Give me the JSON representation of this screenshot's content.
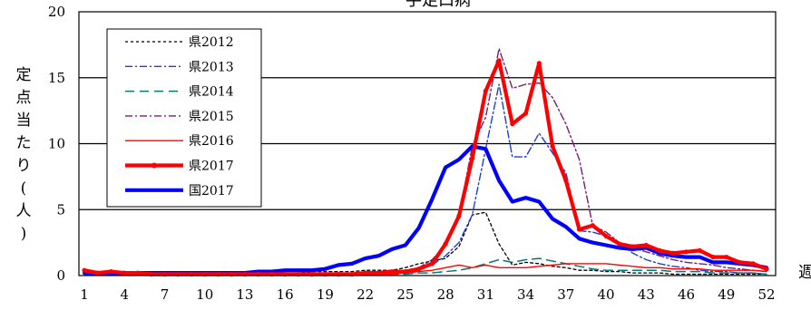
{
  "chart_data": {
    "type": "line",
    "title": "手足口病",
    "ylabel": "定点当たり(人)",
    "xlabel": "週",
    "ylim": [
      0,
      20
    ],
    "yticks": [
      0,
      5,
      10,
      15,
      20
    ],
    "xticks": [
      1,
      4,
      7,
      10,
      13,
      16,
      19,
      22,
      25,
      28,
      31,
      34,
      37,
      40,
      43,
      46,
      49,
      52
    ],
    "legend_position": "top-left",
    "grid": "horizontal",
    "x": [
      1,
      2,
      3,
      4,
      5,
      6,
      7,
      8,
      9,
      10,
      11,
      12,
      13,
      14,
      15,
      16,
      17,
      18,
      19,
      20,
      21,
      22,
      23,
      24,
      25,
      26,
      27,
      28,
      29,
      30,
      31,
      32,
      33,
      34,
      35,
      36,
      37,
      38,
      39,
      40,
      41,
      42,
      43,
      44,
      45,
      46,
      47,
      48,
      49,
      50,
      51,
      52
    ],
    "series": [
      {
        "name": "県2012",
        "color": "#000000",
        "style": "dotted",
        "values": [
          0.1,
          0.1,
          0.1,
          0.1,
          0.1,
          0.1,
          0.1,
          0.1,
          0.1,
          0.1,
          0.1,
          0.1,
          0.1,
          0.1,
          0.1,
          0.2,
          0.2,
          0.3,
          0.3,
          0.3,
          0.3,
          0.4,
          0.4,
          0.4,
          0.6,
          0.9,
          1.1,
          1.3,
          2.2,
          4.6,
          4.8,
          2.4,
          0.8,
          1.0,
          0.9,
          0.7,
          0.6,
          0.4,
          0.4,
          0.3,
          0.3,
          0.2,
          0.2,
          0.2,
          0.1,
          0.1,
          0.1,
          0.1,
          0.1,
          0.1,
          0.1,
          0.1
        ]
      },
      {
        "name": "県2013",
        "color": "#1f3fcc",
        "style": "dashdot",
        "values": [
          0.1,
          0.1,
          0.1,
          0.1,
          0.1,
          0.1,
          0.1,
          0.1,
          0.1,
          0.1,
          0.1,
          0.1,
          0.1,
          0.1,
          0.1,
          0.1,
          0.1,
          0.1,
          0.1,
          0.1,
          0.1,
          0.1,
          0.2,
          0.2,
          0.3,
          0.5,
          0.8,
          1.5,
          2.5,
          4.6,
          9.6,
          14.5,
          9.0,
          9.0,
          10.8,
          9.3,
          7.8,
          3.4,
          3.3,
          3.0,
          2.5,
          1.7,
          1.2,
          0.9,
          0.7,
          0.6,
          0.4,
          0.3,
          0.3,
          0.2,
          0.2,
          0.1
        ]
      },
      {
        "name": "県2014",
        "color": "#007a7a",
        "style": "dashed",
        "values": [
          0.1,
          0.1,
          0.1,
          0.1,
          0.1,
          0.1,
          0.1,
          0.1,
          0.1,
          0.1,
          0.1,
          0.1,
          0.1,
          0.1,
          0.1,
          0.1,
          0.1,
          0.1,
          0.1,
          0.1,
          0.1,
          0.1,
          0.1,
          0.1,
          0.1,
          0.2,
          0.2,
          0.3,
          0.4,
          0.6,
          0.9,
          1.2,
          1.0,
          1.2,
          1.3,
          1.1,
          0.9,
          0.7,
          0.5,
          0.4,
          0.4,
          0.4,
          0.4,
          0.4,
          0.3,
          0.3,
          0.3,
          0.2,
          0.2,
          0.2,
          0.2,
          0.1
        ]
      },
      {
        "name": "県2015",
        "color": "#7a1a7a",
        "style": "dashdot",
        "values": [
          0.1,
          0.1,
          0.1,
          0.1,
          0.1,
          0.1,
          0.1,
          0.1,
          0.1,
          0.1,
          0.1,
          0.1,
          0.1,
          0.1,
          0.1,
          0.1,
          0.1,
          0.1,
          0.1,
          0.1,
          0.1,
          0.1,
          0.1,
          0.2,
          0.3,
          0.6,
          1.2,
          2.3,
          4.5,
          9.8,
          12.0,
          17.2,
          14.2,
          14.5,
          14.6,
          13.5,
          11.5,
          8.8,
          3.8,
          3.3,
          2.5,
          2.1,
          1.8,
          1.5,
          1.2,
          1.0,
          0.9,
          0.8,
          0.6,
          0.5,
          0.4,
          0.3
        ]
      },
      {
        "name": "県2016",
        "color": "#ff0000",
        "style": "solid-thin",
        "values": [
          0.1,
          0.1,
          0.1,
          0.1,
          0.1,
          0.1,
          0.1,
          0.1,
          0.1,
          0.1,
          0.1,
          0.1,
          0.1,
          0.1,
          0.1,
          0.1,
          0.1,
          0.1,
          0.1,
          0.1,
          0.1,
          0.1,
          0.1,
          0.1,
          0.2,
          0.3,
          0.4,
          0.6,
          0.8,
          0.6,
          0.8,
          0.6,
          0.6,
          0.6,
          0.7,
          0.8,
          0.9,
          0.9,
          0.9,
          0.9,
          0.8,
          0.7,
          0.6,
          0.6,
          0.5,
          0.5,
          0.5,
          0.4,
          0.4,
          0.4,
          0.4,
          0.3
        ]
      },
      {
        "name": "県2017",
        "color": "#ff0000",
        "style": "solid-thick-markers",
        "values": [
          0.4,
          0.2,
          0.3,
          0.2,
          0.2,
          0.1,
          0.1,
          0.1,
          0.1,
          0.1,
          0.1,
          0.1,
          0.1,
          0.1,
          0.1,
          0.1,
          0.1,
          0.1,
          0.1,
          0.1,
          0.1,
          0.2,
          0.2,
          0.3,
          0.3,
          0.5,
          0.9,
          2.4,
          4.5,
          8.9,
          14.0,
          16.3,
          11.5,
          12.3,
          16.1,
          9.8,
          7.2,
          3.5,
          3.8,
          3.0,
          2.4,
          2.2,
          2.3,
          1.9,
          1.7,
          1.8,
          1.9,
          1.4,
          1.4,
          1.0,
          0.9,
          0.5
        ]
      },
      {
        "name": "国2017",
        "color": "#0000ff",
        "style": "solid-thick",
        "values": [
          0.2,
          0.2,
          0.2,
          0.2,
          0.2,
          0.2,
          0.2,
          0.2,
          0.2,
          0.2,
          0.2,
          0.2,
          0.2,
          0.3,
          0.3,
          0.4,
          0.4,
          0.4,
          0.5,
          0.8,
          0.9,
          1.3,
          1.5,
          2.0,
          2.3,
          3.6,
          5.8,
          8.2,
          8.8,
          9.8,
          9.6,
          7.2,
          5.6,
          5.9,
          5.6,
          4.3,
          3.7,
          2.8,
          2.5,
          2.3,
          2.1,
          2.0,
          2.1,
          1.7,
          1.5,
          1.4,
          1.4,
          1.0,
          1.0,
          0.9,
          0.8,
          0.6
        ]
      }
    ]
  }
}
